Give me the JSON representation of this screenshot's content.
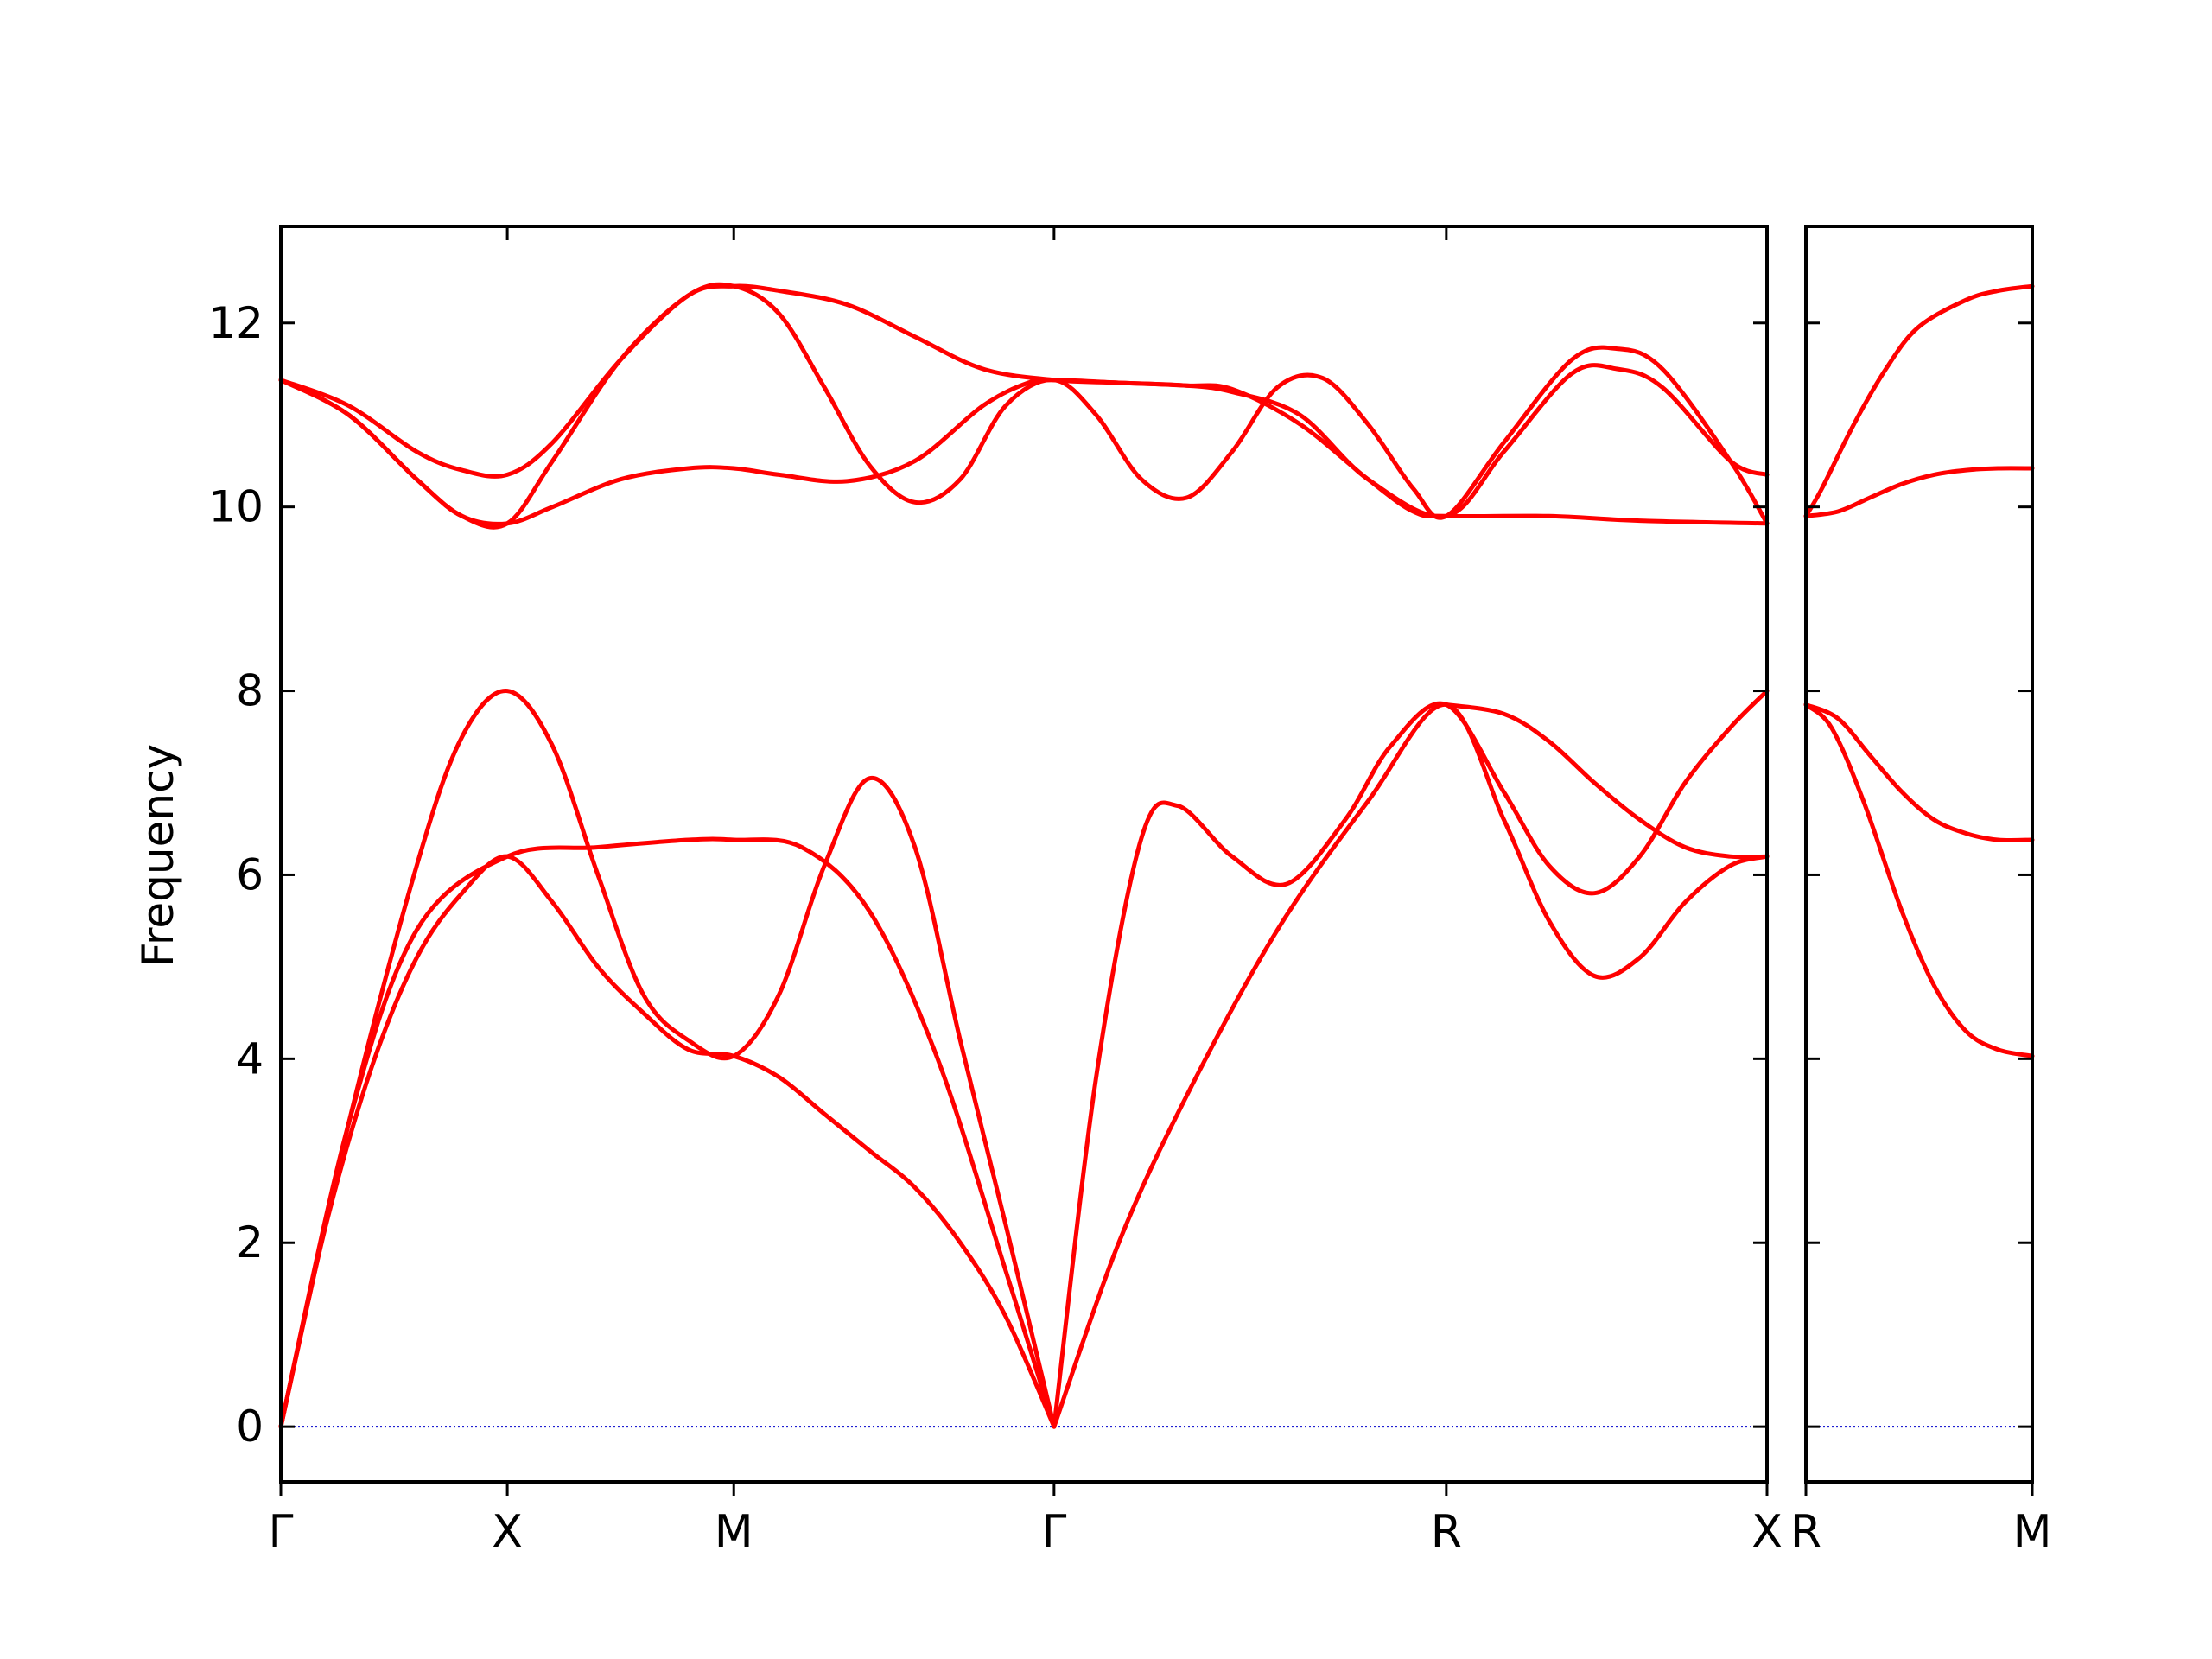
{
  "chart_data": {
    "type": "line",
    "ylabel": "Frequency",
    "xlabel": "",
    "title": "",
    "ylim": [
      -0.6,
      13.05
    ],
    "yticks": [
      0,
      2,
      4,
      6,
      8,
      10,
      12
    ],
    "ytick_labels": [
      "0",
      "2",
      "4",
      "6",
      "8",
      "10",
      "12"
    ],
    "colors": {
      "bands": "#ff0000",
      "zero_line": "#0000cc",
      "axes": "#000000"
    },
    "grid": false,
    "panels": [
      {
        "name": "main",
        "k_labels": [
          "Γ",
          "X",
          "M",
          "Γ",
          "R",
          "X"
        ],
        "k_positions": [
          0,
          0.5,
          1.0,
          1.707,
          2.573,
          3.281
        ],
        "bands": [
          {
            "name": "band-1",
            "points": [
              [
                0,
                0
              ],
              [
                0.1,
                2.2
              ],
              [
                0.2,
                3.9
              ],
              [
                0.3,
                5.1
              ],
              [
                0.4,
                5.8
              ],
              [
                0.5,
                6.2
              ],
              [
                0.6,
                5.7
              ],
              [
                0.7,
                5.0
              ],
              [
                0.8,
                4.5
              ],
              [
                0.9,
                4.1
              ],
              [
                1.0,
                4.03
              ],
              [
                1.1,
                3.8
              ],
              [
                1.2,
                3.4
              ],
              [
                1.3,
                3.0
              ],
              [
                1.4,
                2.6
              ],
              [
                1.5,
                2.0
              ],
              [
                1.6,
                1.2
              ],
              [
                1.707,
                0
              ]
            ]
          },
          {
            "name": "band-2",
            "points": [
              [
                0,
                0
              ],
              [
                0.15,
                3.3
              ],
              [
                0.3,
                6.1
              ],
              [
                0.4,
                7.5
              ],
              [
                0.5,
                8.0
              ],
              [
                0.6,
                7.4
              ],
              [
                0.7,
                6.0
              ],
              [
                0.8,
                4.7
              ],
              [
                0.9,
                4.2
              ],
              [
                1.0,
                4.03
              ],
              [
                1.1,
                4.7
              ],
              [
                1.2,
                6.1
              ],
              [
                1.3,
                7.05
              ],
              [
                1.4,
                6.3
              ],
              [
                1.5,
                4.2
              ],
              [
                1.6,
                2.2
              ],
              [
                1.707,
                0
              ]
            ]
          },
          {
            "name": "band-3",
            "points": [
              [
                0,
                0
              ],
              [
                0.15,
                3.3
              ],
              [
                0.3,
                5.4
              ],
              [
                0.5,
                6.2
              ],
              [
                0.7,
                6.3
              ],
              [
                0.9,
                6.38
              ],
              [
                1.0,
                6.38
              ],
              [
                1.15,
                6.3
              ],
              [
                1.3,
                5.6
              ],
              [
                1.45,
                4.0
              ],
              [
                1.6,
                1.7
              ],
              [
                1.707,
                0
              ]
            ]
          },
          {
            "name": "band-4",
            "points": [
              [
                1.707,
                0
              ],
              [
                1.85,
                2.0
              ],
              [
                2.0,
                3.6
              ],
              [
                2.2,
                5.4
              ],
              [
                2.4,
                6.8
              ],
              [
                2.573,
                7.85
              ],
              [
                2.7,
                6.6
              ],
              [
                2.8,
                5.5
              ],
              [
                2.9,
                4.9
              ],
              [
                3.0,
                5.1
              ],
              [
                3.1,
                5.7
              ],
              [
                3.2,
                6.1
              ],
              [
                3.281,
                6.2
              ]
            ]
          },
          {
            "name": "band-5",
            "points": [
              [
                1.707,
                0
              ],
              [
                1.8,
                3.8
              ],
              [
                1.9,
                6.4
              ],
              [
                1.98,
                6.75
              ],
              [
                2.1,
                6.2
              ],
              [
                2.22,
                5.9
              ],
              [
                2.35,
                6.6
              ],
              [
                2.45,
                7.4
              ],
              [
                2.573,
                7.85
              ],
              [
                2.7,
                6.9
              ],
              [
                2.8,
                6.1
              ],
              [
                2.9,
                5.8
              ],
              [
                3.0,
                6.2
              ],
              [
                3.1,
                7.0
              ],
              [
                3.2,
                7.6
              ],
              [
                3.281,
                8.0
              ]
            ]
          },
          {
            "name": "band-6",
            "points": [
              [
                2.573,
                7.85
              ],
              [
                2.7,
                7.75
              ],
              [
                2.8,
                7.45
              ],
              [
                2.9,
                7.0
              ],
              [
                3.0,
                6.6
              ],
              [
                3.1,
                6.3
              ],
              [
                3.2,
                6.2
              ],
              [
                3.281,
                6.2
              ]
            ]
          },
          {
            "name": "band-7",
            "points": [
              [
                0,
                11.38
              ],
              [
                0.15,
                11.0
              ],
              [
                0.3,
                10.3
              ],
              [
                0.4,
                9.9
              ],
              [
                0.5,
                9.82
              ],
              [
                0.6,
                10.0
              ],
              [
                0.75,
                10.3
              ],
              [
                0.9,
                10.42
              ],
              [
                1.0,
                10.42
              ],
              [
                1.1,
                10.35
              ],
              [
                1.25,
                10.28
              ],
              [
                1.4,
                10.5
              ],
              [
                1.55,
                11.1
              ],
              [
                1.65,
                11.35
              ],
              [
                1.707,
                11.38
              ],
              [
                1.85,
                11.35
              ],
              [
                2.0,
                11.32
              ],
              [
                2.1,
                11.28
              ],
              [
                2.25,
                10.9
              ],
              [
                2.4,
                10.3
              ],
              [
                2.5,
                9.95
              ],
              [
                2.573,
                9.9
              ],
              [
                2.8,
                9.9
              ],
              [
                3.0,
                9.85
              ],
              [
                3.281,
                9.82
              ]
            ]
          },
          {
            "name": "band-8",
            "points": [
              [
                0,
                11.38
              ],
              [
                0.15,
                11.1
              ],
              [
                0.3,
                10.6
              ],
              [
                0.4,
                10.4
              ],
              [
                0.5,
                10.35
              ],
              [
                0.6,
                10.7
              ],
              [
                0.75,
                11.6
              ],
              [
                0.9,
                12.3
              ],
              [
                1.0,
                12.4
              ],
              [
                1.1,
                12.35
              ],
              [
                1.25,
                12.2
              ],
              [
                1.4,
                11.85
              ],
              [
                1.55,
                11.5
              ],
              [
                1.707,
                11.38
              ],
              [
                1.85,
                11.35
              ],
              [
                2.0,
                11.32
              ],
              [
                2.1,
                11.25
              ],
              [
                2.25,
                11.0
              ],
              [
                2.4,
                10.3
              ],
              [
                2.573,
                9.9
              ],
              [
                2.7,
                10.6
              ],
              [
                2.85,
                11.45
              ],
              [
                2.95,
                11.5
              ],
              [
                3.05,
                11.3
              ],
              [
                3.2,
                10.5
              ],
              [
                3.281,
                10.35
              ]
            ]
          },
          {
            "name": "band-9",
            "points": [
              [
                0,
                11.38
              ],
              [
                0.15,
                11.0
              ],
              [
                0.3,
                10.3
              ],
              [
                0.4,
                9.9
              ],
              [
                0.5,
                9.82
              ],
              [
                0.6,
                10.5
              ],
              [
                0.75,
                11.6
              ],
              [
                0.9,
                12.3
              ],
              [
                1.0,
                12.4
              ],
              [
                1.1,
                12.1
              ],
              [
                1.2,
                11.3
              ],
              [
                1.3,
                10.45
              ],
              [
                1.4,
                10.05
              ],
              [
                1.5,
                10.3
              ],
              [
                1.6,
                11.1
              ],
              [
                1.707,
                11.38
              ],
              [
                1.8,
                11.0
              ],
              [
                1.9,
                10.3
              ],
              [
                2.0,
                10.1
              ],
              [
                2.1,
                10.6
              ],
              [
                2.2,
                11.3
              ],
              [
                2.3,
                11.4
              ],
              [
                2.4,
                10.9
              ],
              [
                2.5,
                10.2
              ],
              [
                2.573,
                9.9
              ],
              [
                2.7,
                10.7
              ],
              [
                2.85,
                11.6
              ],
              [
                2.95,
                11.72
              ],
              [
                3.05,
                11.5
              ],
              [
                3.2,
                10.5
              ],
              [
                3.281,
                9.82
              ]
            ]
          }
        ]
      },
      {
        "name": "side",
        "k_labels": [
          "R",
          "M"
        ],
        "k_positions": [
          0,
          0.707
        ],
        "bands": [
          {
            "name": "side-band-1",
            "points": [
              [
                0,
                7.85
              ],
              [
                0.1,
                7.7
              ],
              [
                0.2,
                7.3
              ],
              [
                0.3,
                6.9
              ],
              [
                0.4,
                6.6
              ],
              [
                0.5,
                6.45
              ],
              [
                0.6,
                6.38
              ],
              [
                0.707,
                6.38
              ]
            ]
          },
          {
            "name": "side-band-2",
            "points": [
              [
                0,
                7.85
              ],
              [
                0.08,
                7.6
              ],
              [
                0.18,
                6.8
              ],
              [
                0.3,
                5.6
              ],
              [
                0.4,
                4.8
              ],
              [
                0.5,
                4.3
              ],
              [
                0.6,
                4.1
              ],
              [
                0.707,
                4.03
              ]
            ]
          },
          {
            "name": "side-band-3",
            "points": [
              [
                0,
                9.9
              ],
              [
                0.1,
                9.95
              ],
              [
                0.2,
                10.1
              ],
              [
                0.3,
                10.25
              ],
              [
                0.4,
                10.35
              ],
              [
                0.5,
                10.4
              ],
              [
                0.6,
                10.42
              ],
              [
                0.707,
                10.42
              ]
            ]
          },
          {
            "name": "side-band-4",
            "points": [
              [
                0,
                9.9
              ],
              [
                0.05,
                10.2
              ],
              [
                0.15,
                10.9
              ],
              [
                0.25,
                11.5
              ],
              [
                0.35,
                11.95
              ],
              [
                0.5,
                12.25
              ],
              [
                0.6,
                12.35
              ],
              [
                0.707,
                12.4
              ]
            ]
          }
        ]
      }
    ]
  }
}
